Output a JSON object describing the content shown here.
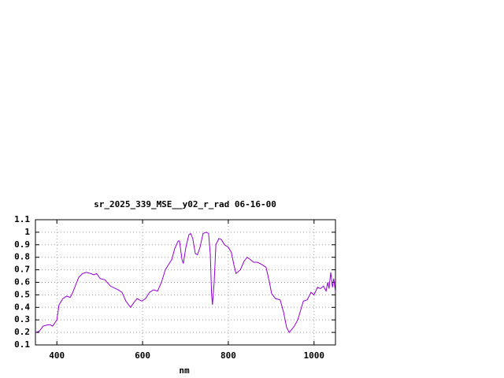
{
  "chart_data": {
    "type": "line",
    "title": "sr_2025_339_MSE__y02_r_rad 06-16-00",
    "x_label": "nm",
    "x": [
      350,
      359,
      368,
      378,
      385,
      390,
      396,
      400,
      405,
      414,
      423,
      431,
      436,
      444,
      451,
      460,
      469,
      479,
      486,
      493,
      501,
      512,
      525,
      543,
      552,
      561,
      572,
      580,
      587,
      598,
      607,
      616,
      626,
      635,
      644,
      653,
      662,
      668,
      675,
      683,
      686,
      692,
      695,
      701,
      708,
      712,
      717,
      723,
      728,
      734,
      741,
      749,
      754,
      758,
      761,
      763,
      767,
      771,
      778,
      784,
      791,
      800,
      807,
      813,
      818,
      828,
      837,
      844,
      852,
      859,
      868,
      879,
      888,
      896,
      901,
      910,
      921,
      929,
      936,
      942,
      947,
      954,
      962,
      969,
      975,
      984,
      993,
      1000,
      1008,
      1015,
      1022,
      1028,
      1032,
      1035,
      1039,
      1043,
      1046,
      1050
    ],
    "series": [
      {
        "name": "r_rad",
        "color": "#9400d3",
        "values": [
          0.2,
          0.21,
          0.25,
          0.26,
          0.26,
          0.25,
          0.28,
          0.3,
          0.42,
          0.47,
          0.49,
          0.48,
          0.51,
          0.58,
          0.64,
          0.67,
          0.68,
          0.67,
          0.66,
          0.67,
          0.63,
          0.62,
          0.57,
          0.54,
          0.52,
          0.45,
          0.4,
          0.44,
          0.47,
          0.45,
          0.47,
          0.52,
          0.54,
          0.53,
          0.6,
          0.7,
          0.75,
          0.78,
          0.87,
          0.93,
          0.93,
          0.78,
          0.75,
          0.88,
          0.98,
          0.99,
          0.95,
          0.83,
          0.82,
          0.88,
          0.99,
          1.0,
          0.99,
          0.82,
          0.5,
          0.42,
          0.6,
          0.9,
          0.95,
          0.94,
          0.9,
          0.88,
          0.84,
          0.74,
          0.67,
          0.7,
          0.77,
          0.8,
          0.78,
          0.76,
          0.76,
          0.74,
          0.72,
          0.6,
          0.51,
          0.47,
          0.46,
          0.36,
          0.24,
          0.2,
          0.22,
          0.25,
          0.3,
          0.38,
          0.45,
          0.46,
          0.52,
          0.5,
          0.56,
          0.55,
          0.57,
          0.53,
          0.6,
          0.55,
          0.68,
          0.56,
          0.63,
          0.52
        ]
      }
    ],
    "xlim": [
      350,
      1050
    ],
    "ylim": [
      0.1,
      1.1
    ],
    "xticks": [
      400,
      600,
      800,
      1000
    ],
    "yticks": [
      0.1,
      0.2,
      0.3,
      0.4,
      0.5,
      0.6,
      0.7,
      0.8,
      0.9,
      1,
      1.1
    ],
    "grid": true
  }
}
